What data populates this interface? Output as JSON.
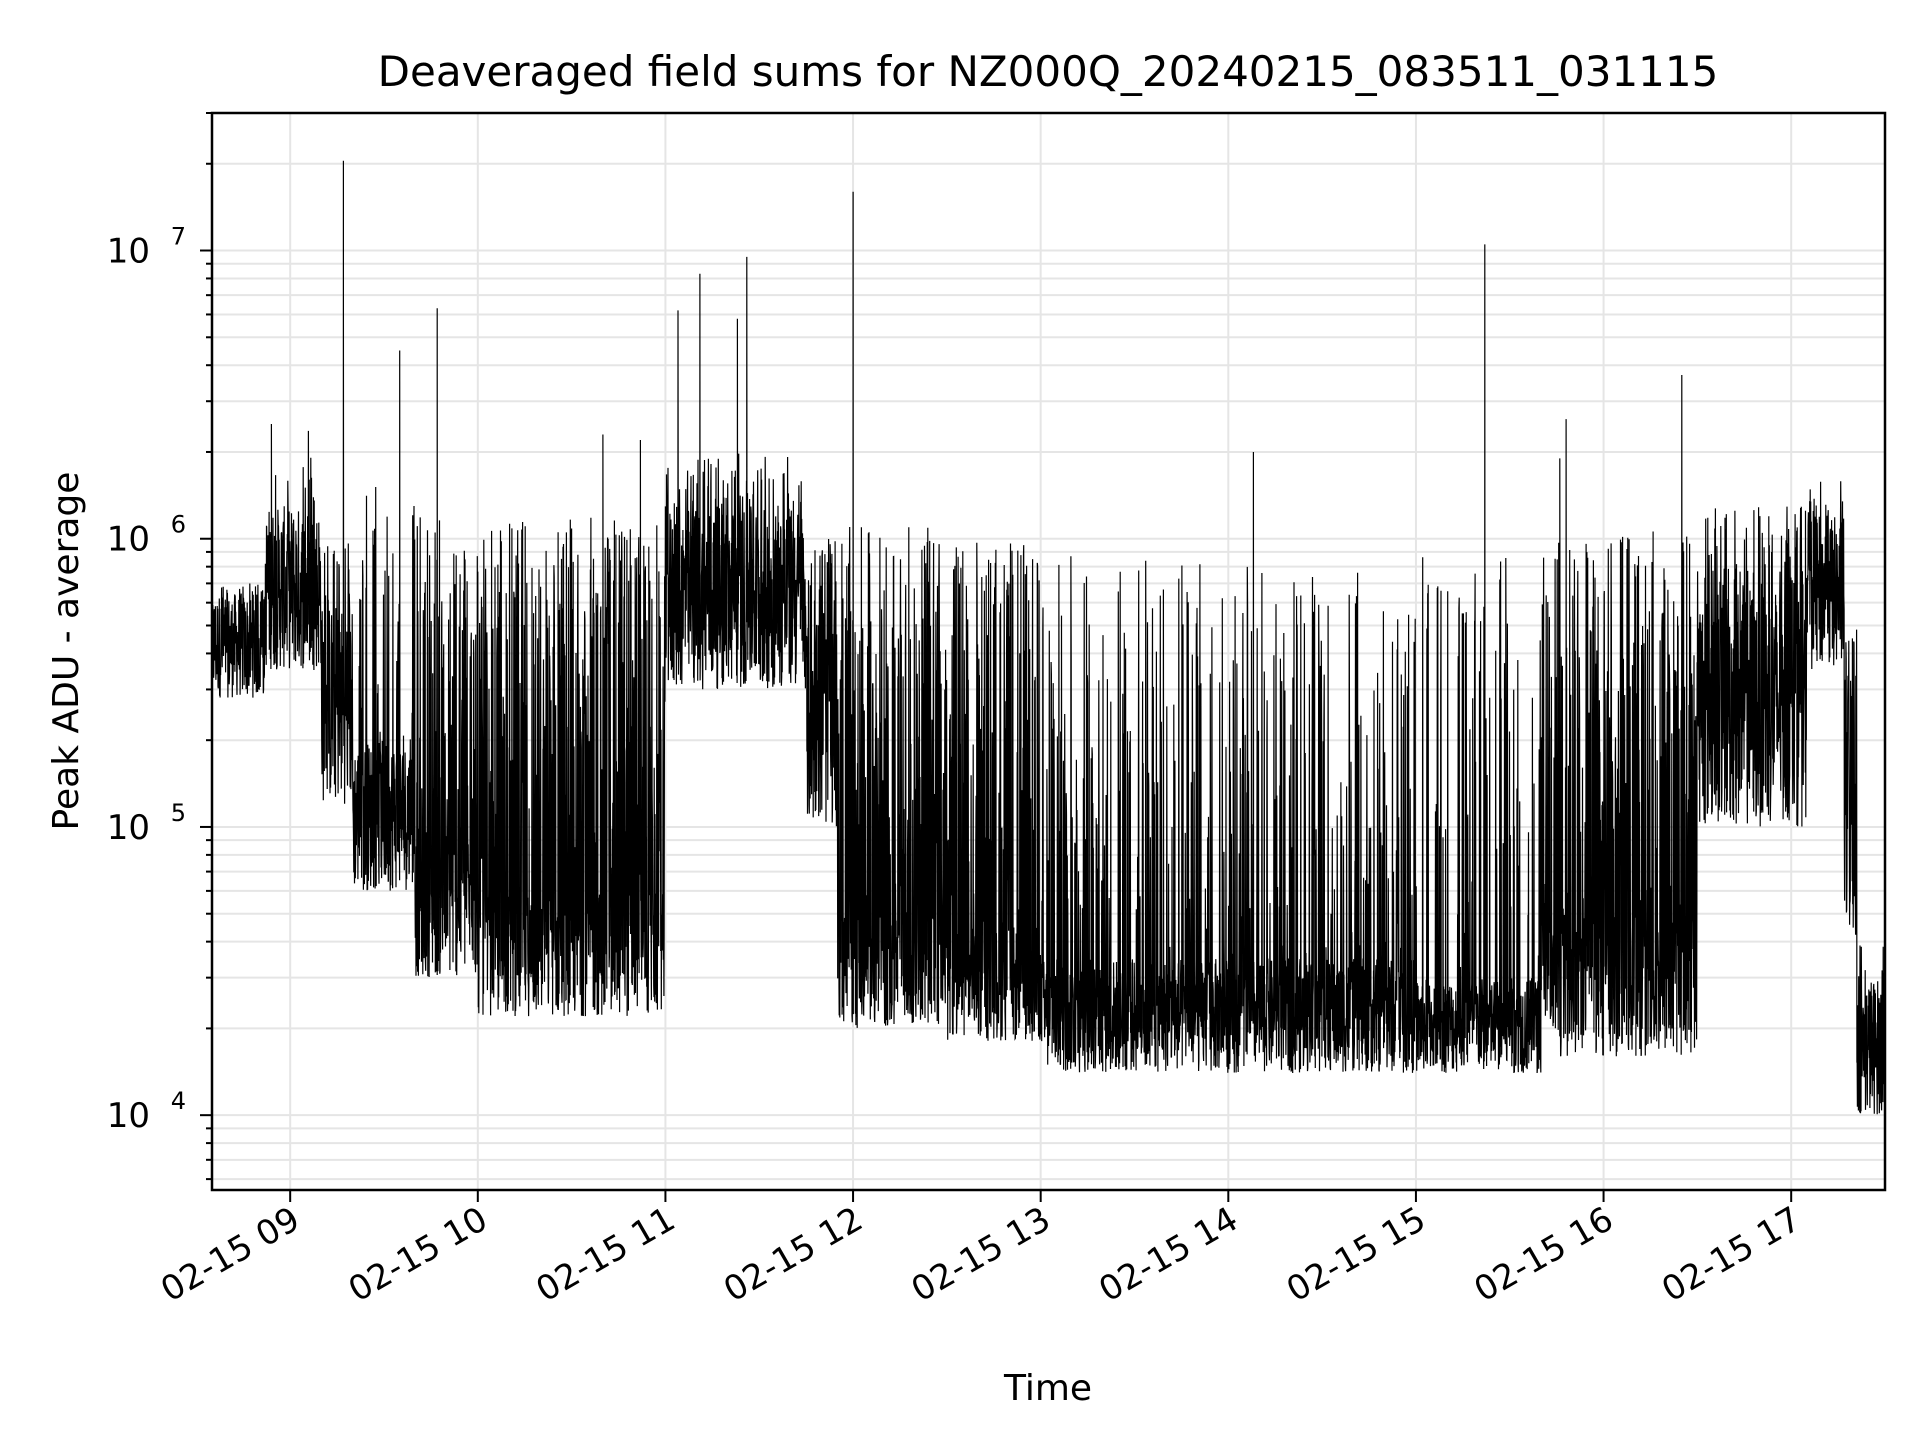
{
  "chart_data": {
    "type": "line",
    "title": "Deaveraged field sums for NZ000Q_20240215_083511_031115",
    "xlabel": "Time",
    "ylabel": "Peak ADU - average",
    "yscale": "log",
    "grid": true,
    "x_axis": {
      "start": "02-15 08:35",
      "end": "02-15 17:30",
      "tick_labels": [
        "02-15 09",
        "02-15 10",
        "02-15 11",
        "02-15 12",
        "02-15 13",
        "02-15 14",
        "02-15 15",
        "02-15 16",
        "02-15 17"
      ]
    },
    "y_axis": {
      "ylim": [
        5500,
        30000000
      ],
      "major_ticks": [
        {
          "value": 10000,
          "base": "10",
          "exp": "4"
        },
        {
          "value": 100000,
          "base": "10",
          "exp": "5"
        },
        {
          "value": 1000000,
          "base": "10",
          "exp": "6"
        },
        {
          "value": 10000000,
          "base": "10",
          "exp": "7"
        }
      ]
    },
    "series": [
      {
        "color": "#000000",
        "segments": [
          {
            "start": "02-15 08:35",
            "end": "02-15 08:52",
            "low": 280000,
            "high": 650000,
            "spike_rate": 0.05,
            "spike_max": 700000
          },
          {
            "start": "02-15 08:52",
            "end": "02-15 09:10",
            "low": 350000,
            "high": 1300000,
            "spike_rate": 0.05,
            "spike_max": 2500000
          },
          {
            "start": "02-15 09:10",
            "end": "02-15 09:20",
            "low": 120000,
            "high": 600000,
            "spike_rate": 0.08,
            "spike_max": 1000000
          },
          {
            "start": "02-15 09:20",
            "end": "02-15 09:40",
            "low": 60000,
            "high": 200000,
            "spike_rate": 0.15,
            "spike_max": 1700000
          },
          {
            "start": "02-15 09:40",
            "end": "02-15 10:00",
            "low": 30000,
            "high": 100000,
            "spike_rate": 0.3,
            "spike_max": 1200000
          },
          {
            "start": "02-15 10:00",
            "end": "02-15 10:30",
            "low": 22000,
            "high": 60000,
            "spike_rate": 0.45,
            "spike_max": 1200000
          },
          {
            "start": "02-15 10:30",
            "end": "02-15 11:00",
            "low": 22000,
            "high": 60000,
            "spike_rate": 0.45,
            "spike_max": 1200000
          },
          {
            "start": "02-15 11:00",
            "end": "02-15 11:45",
            "low": 300000,
            "high": 1300000,
            "spike_rate": 0.08,
            "spike_max": 2000000
          },
          {
            "start": "02-15 11:45",
            "end": "02-15 11:55",
            "low": 100000,
            "high": 500000,
            "spike_rate": 0.2,
            "spike_max": 1000000
          },
          {
            "start": "02-15 11:55",
            "end": "02-15 12:30",
            "low": 20000,
            "high": 50000,
            "spike_rate": 0.4,
            "spike_max": 1100000
          },
          {
            "start": "02-15 12:30",
            "end": "02-15 13:00",
            "low": 18000,
            "high": 45000,
            "spike_rate": 0.35,
            "spike_max": 1000000
          },
          {
            "start": "02-15 13:00",
            "end": "02-15 14:00",
            "low": 14000,
            "high": 35000,
            "spike_rate": 0.22,
            "spike_max": 900000
          },
          {
            "start": "02-15 14:00",
            "end": "02-15 15:00",
            "low": 14000,
            "high": 35000,
            "spike_rate": 0.2,
            "spike_max": 800000
          },
          {
            "start": "02-15 15:00",
            "end": "02-15 15:40",
            "low": 14000,
            "high": 30000,
            "spike_rate": 0.15,
            "spike_max": 900000
          },
          {
            "start": "02-15 15:40",
            "end": "02-15 16:30",
            "low": 16000,
            "high": 50000,
            "spike_rate": 0.35,
            "spike_max": 1100000
          },
          {
            "start": "02-15 16:30",
            "end": "02-15 17:05",
            "low": 100000,
            "high": 700000,
            "spike_rate": 0.15,
            "spike_max": 1300000
          },
          {
            "start": "02-15 17:05",
            "end": "02-15 17:17",
            "low": 350000,
            "high": 1200000,
            "spike_rate": 0.1,
            "spike_max": 1600000
          },
          {
            "start": "02-15 17:17",
            "end": "02-15 17:21",
            "low": 40000,
            "high": 400000,
            "spike_rate": 0.1,
            "spike_max": 500000
          },
          {
            "start": "02-15 17:21",
            "end": "02-15 17:30",
            "low": 10000,
            "high": 30000,
            "spike_rate": 0.05,
            "spike_max": 40000
          }
        ],
        "spikes": [
          {
            "x": "02-15 08:54",
            "y": 2500000
          },
          {
            "x": "02-15 09:17",
            "y": 20500000
          },
          {
            "x": "02-15 09:17",
            "y": 7000000
          },
          {
            "x": "02-15 09:35",
            "y": 4500000
          },
          {
            "x": "02-15 09:47",
            "y": 6300000
          },
          {
            "x": "02-15 10:40",
            "y": 2300000
          },
          {
            "x": "02-15 10:52",
            "y": 2200000
          },
          {
            "x": "02-15 11:04",
            "y": 6200000
          },
          {
            "x": "02-15 11:11",
            "y": 8300000
          },
          {
            "x": "02-15 11:23",
            "y": 5800000
          },
          {
            "x": "02-15 11:26",
            "y": 9500000
          },
          {
            "x": "02-15 12:00",
            "y": 16000000
          },
          {
            "x": "02-15 14:08",
            "y": 2000000
          },
          {
            "x": "02-15 15:22",
            "y": 10500000
          },
          {
            "x": "02-15 15:46",
            "y": 1900000
          },
          {
            "x": "02-15 15:48",
            "y": 2600000
          },
          {
            "x": "02-15 16:25",
            "y": 3700000
          }
        ]
      }
    ]
  }
}
